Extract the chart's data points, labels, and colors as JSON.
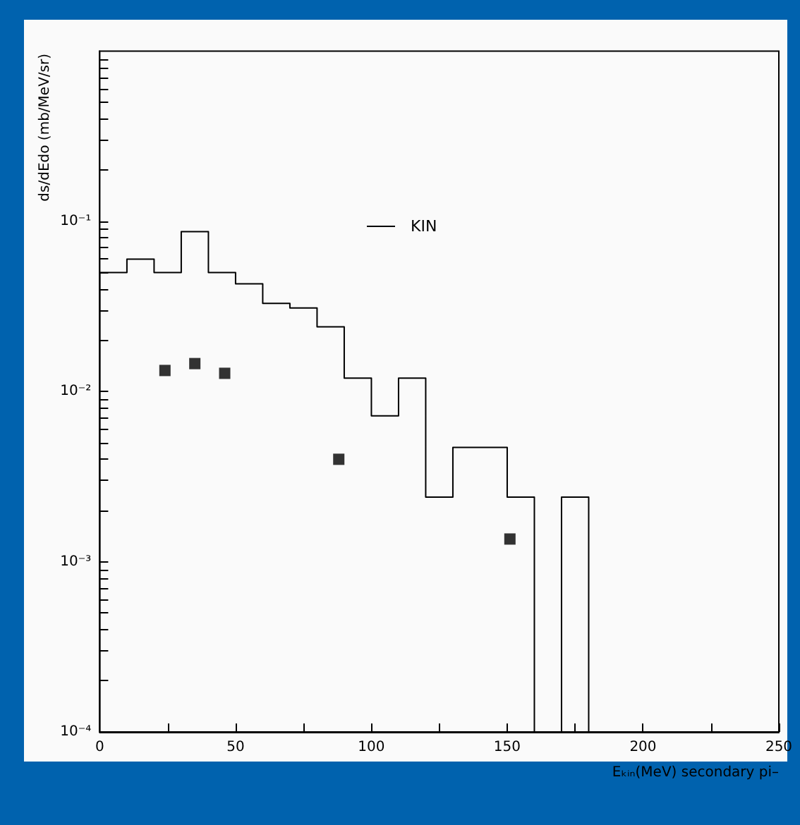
{
  "chart_data": {
    "type": "histogram",
    "xlabel": "Eₖᵢₙ(MeV) secondary pi–",
    "ylabel": "ds/dEdo (mb/MeV/sr)",
    "log": "y",
    "xlim": [
      0,
      250
    ],
    "xticks": [
      0,
      {
        "value": 25,
        "label": null
      },
      50,
      {
        "value": 75,
        "label": null
      },
      100,
      {
        "value": 125,
        "label": null
      },
      150,
      {
        "value": 175,
        "label": null
      },
      200,
      {
        "value": 225,
        "label": null
      },
      250
    ],
    "ylim": [
      0.0001,
      1
    ],
    "yticks": [
      {
        "value": 0.0001,
        "label": "10⁻⁴"
      },
      {
        "value": 0.0002,
        "label": null
      },
      {
        "value": 0.0003,
        "label": null
      },
      {
        "value": 0.0004,
        "label": null
      },
      {
        "value": 0.0005,
        "label": null
      },
      {
        "value": 0.0006,
        "label": null
      },
      {
        "value": 0.0007,
        "label": null
      },
      {
        "value": 0.0008,
        "label": null
      },
      {
        "value": 0.0009,
        "label": null
      },
      {
        "value": 0.001,
        "label": "10⁻³"
      },
      {
        "value": 0.002,
        "label": null
      },
      {
        "value": 0.003,
        "label": null
      },
      {
        "value": 0.004,
        "label": null
      },
      {
        "value": 0.005,
        "label": null
      },
      {
        "value": 0.006,
        "label": null
      },
      {
        "value": 0.007,
        "label": null
      },
      {
        "value": 0.008,
        "label": null
      },
      {
        "value": 0.009,
        "label": null
      },
      {
        "value": 0.01,
        "label": "10⁻²"
      },
      {
        "value": 0.02,
        "label": null
      },
      {
        "value": 0.03,
        "label": null
      },
      {
        "value": 0.04,
        "label": null
      },
      {
        "value": 0.05,
        "label": null
      },
      {
        "value": 0.06,
        "label": null
      },
      {
        "value": 0.07,
        "label": null
      },
      {
        "value": 0.08,
        "label": null
      },
      {
        "value": 0.09,
        "label": null
      },
      {
        "value": 0.1,
        "label": "10⁻¹"
      },
      {
        "value": 0.2,
        "label": null
      },
      {
        "value": 0.3,
        "label": null
      },
      {
        "value": 0.4,
        "label": null
      },
      {
        "value": 0.5,
        "label": null
      },
      {
        "value": 0.6,
        "label": null
      },
      {
        "value": 0.7,
        "label": null
      },
      {
        "value": 0.8,
        "label": null
      },
      {
        "value": 0.9,
        "label": null
      }
    ],
    "grid": false,
    "legend": "top",
    "series": [
      {
        "name": "KIN",
        "color": "#000000",
        "bins": [
          0,
          10,
          20,
          30,
          40,
          50,
          60,
          70,
          80,
          90,
          100,
          110,
          120,
          130,
          140,
          150,
          160,
          170,
          180
        ],
        "values": [
          0.05,
          0.06,
          0.05,
          0.087,
          0.05,
          0.043,
          0.033,
          0.031,
          0.024,
          0.012,
          0.0072,
          0.012,
          0.0024,
          0.0047,
          0.0047,
          0.0024,
          null,
          0.0024
        ]
      },
      {
        "type": "scatter",
        "color": "#000000",
        "marker": "square",
        "x": [
          24,
          35,
          46,
          88,
          151
        ],
        "values": [
          0.0133,
          0.0146,
          0.0128,
          0.004,
          0.00136
        ]
      }
    ]
  }
}
